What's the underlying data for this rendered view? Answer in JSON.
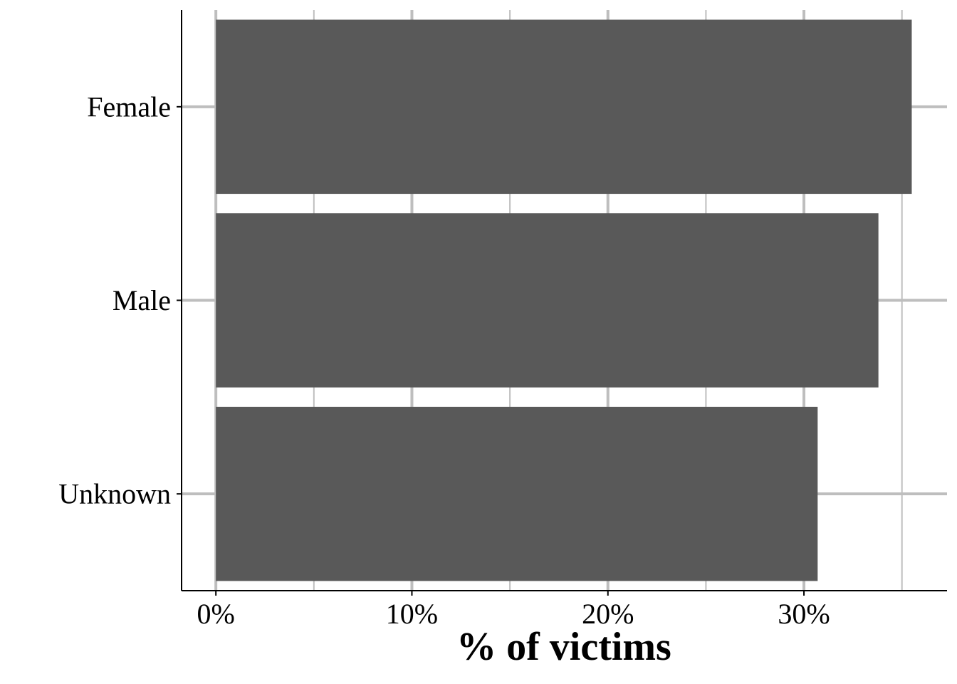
{
  "chart_data": {
    "type": "bar",
    "orientation": "horizontal",
    "title": "",
    "xlabel": "% of victims",
    "ylabel": "",
    "categories": [
      "Female",
      "Male",
      "Unknown"
    ],
    "values": [
      35.5,
      33.8,
      30.7
    ],
    "value_unit": "%",
    "xlim": [
      -1.75,
      37.3
    ],
    "xticks": [
      0,
      10,
      20,
      30
    ],
    "xtick_labels": [
      "0%",
      "10%",
      "20%",
      "30%"
    ],
    "grid": true,
    "legend": "none",
    "colors": {
      "bar": "#595959",
      "grid_major": "#bebebe",
      "grid_minor": "#bebebe",
      "axis": "#000000"
    }
  }
}
